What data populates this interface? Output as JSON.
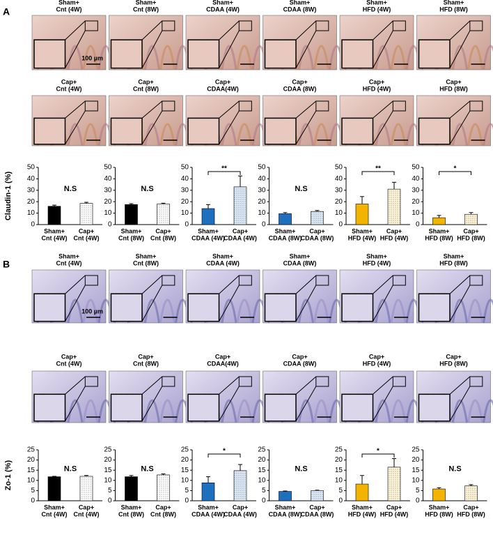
{
  "figure": {
    "panels": [
      {
        "label": "A",
        "scale_label": "100 µm",
        "micrograph_labels": [
          [
            [
              "Sham+",
              "Cnt (4W)"
            ],
            [
              "Sham+",
              "Cnt (8W)"
            ],
            [
              "Sham+",
              "CDAA (4W)"
            ],
            [
              "Sham+",
              "CDAA (8W)"
            ],
            [
              "Sham+",
              "HFD (4W)"
            ],
            [
              "Sham+",
              "HFD (8W)"
            ]
          ],
          [
            [
              "Cap+",
              "Cnt (4W)"
            ],
            [
              "Cap+",
              "Cnt (8W)"
            ],
            [
              "Cap+",
              "CDAA(4W)"
            ],
            [
              "Cap+",
              "CDAA (8W)"
            ],
            [
              "Cap+",
              "HFD (4W)"
            ],
            [
              "Cap+",
              "HFD (8W)"
            ]
          ]
        ]
      },
      {
        "label": "B",
        "scale_label": "100 µm",
        "micrograph_labels": [
          [
            [
              "Sham+",
              "Cnt (4W)"
            ],
            [
              "Sham+",
              "Cnt (8W)"
            ],
            [
              "Sham+",
              "CDAA (4W)"
            ],
            [
              "Sham+",
              "CDAA (8W)"
            ],
            [
              "Sham+",
              "HFD (4W)"
            ],
            [
              "Sham+",
              "HFD (8W)"
            ]
          ],
          [
            [
              "Cap+",
              "Cnt (4W)"
            ],
            [
              "Cap+",
              "Cnt (8W)"
            ],
            [
              "Cap+",
              "CDAA(4W)"
            ],
            [
              "Cap+",
              "CDAA (8W)"
            ],
            [
              "Cap+",
              "HFD (4W)"
            ],
            [
              "Cap+",
              "HFD (8W)"
            ]
          ]
        ]
      }
    ]
  },
  "chart_data": [
    {
      "type": "bar",
      "ylabel": "Claudin-1 (%)",
      "categories": [
        [
          "Sham+",
          "Cnt (4W)"
        ],
        [
          "Cap+",
          "Cnt (4W)"
        ]
      ],
      "values": [
        16,
        18.5
      ],
      "errors": [
        1,
        1
      ],
      "colors": [
        "#000000",
        "#ffffff"
      ],
      "bar_fill": [
        "solid",
        "dotted"
      ],
      "ylim": [
        0,
        50
      ],
      "yticks": [
        0,
        10,
        20,
        30,
        40,
        50
      ],
      "annotation": "N.S",
      "bracket": false
    },
    {
      "type": "bar",
      "categories": [
        [
          "Sham+",
          "Cnt (8W)"
        ],
        [
          "Cap+",
          "Cnt (8W)"
        ]
      ],
      "values": [
        17.5,
        18
      ],
      "errors": [
        0.8,
        0.7
      ],
      "colors": [
        "#000000",
        "#ffffff"
      ],
      "bar_fill": [
        "solid",
        "dotted"
      ],
      "ylim": [
        0,
        50
      ],
      "yticks": [
        0,
        10,
        20,
        30,
        40,
        50
      ],
      "annotation": "N.S",
      "bracket": false
    },
    {
      "type": "bar",
      "categories": [
        [
          "Sham+",
          "CDAA (4W)"
        ],
        [
          "Cap+",
          "CDAA (4W)"
        ]
      ],
      "values": [
        14,
        33
      ],
      "errors": [
        3.5,
        9.5
      ],
      "colors": [
        "#1f6fbf",
        "#dce9f7"
      ],
      "bar_fill": [
        "solid",
        "dotted"
      ],
      "ylim": [
        0,
        50
      ],
      "yticks": [
        0,
        10,
        20,
        30,
        40,
        50
      ],
      "annotation": "**",
      "bracket": true
    },
    {
      "type": "bar",
      "categories": [
        [
          "Sham+",
          "CDAA (8W)"
        ],
        [
          "Cap+",
          "CDAA (8W)"
        ]
      ],
      "values": [
        9.5,
        11.5
      ],
      "errors": [
        1,
        0.8
      ],
      "colors": [
        "#1f6fbf",
        "#dce9f7"
      ],
      "bar_fill": [
        "solid",
        "dotted"
      ],
      "ylim": [
        0,
        50
      ],
      "yticks": [
        0,
        10,
        20,
        30,
        40,
        50
      ],
      "annotation": "N.S",
      "bracket": false
    },
    {
      "type": "bar",
      "categories": [
        [
          "Sham+",
          "HFD (4W)"
        ],
        [
          "Cap+",
          "HFD (4W)"
        ]
      ],
      "values": [
        18,
        31
      ],
      "errors": [
        6.5,
        6
      ],
      "colors": [
        "#f2b400",
        "#fff5d6"
      ],
      "bar_fill": [
        "solid",
        "dotted"
      ],
      "ylim": [
        0,
        50
      ],
      "yticks": [
        0,
        10,
        20,
        30,
        40,
        50
      ],
      "annotation": "**",
      "bracket": true
    },
    {
      "type": "bar",
      "categories": [
        [
          "Sham+",
          "HFD (8W)"
        ],
        [
          "Cap+",
          "HFD (8W)"
        ]
      ],
      "values": [
        6,
        9
      ],
      "errors": [
        2,
        1.5
      ],
      "colors": [
        "#f2b400",
        "#fff5d6"
      ],
      "bar_fill": [
        "solid",
        "dotted"
      ],
      "ylim": [
        0,
        50
      ],
      "yticks": [
        0,
        10,
        20,
        30,
        40,
        50
      ],
      "annotation": "*",
      "bracket": true
    },
    {
      "type": "bar",
      "ylabel": "Zo-1 (%)",
      "categories": [
        [
          "Sham+",
          "Cnt (4W)"
        ],
        [
          "Cap+",
          "Cnt (4W)"
        ]
      ],
      "values": [
        11.8,
        12
      ],
      "errors": [
        0.2,
        0.4
      ],
      "colors": [
        "#000000",
        "#ffffff"
      ],
      "bar_fill": [
        "solid",
        "dotted"
      ],
      "ylim": [
        0,
        25
      ],
      "yticks": [
        0,
        5,
        10,
        15,
        20,
        25
      ],
      "annotation": "N.S",
      "bracket": false
    },
    {
      "type": "bar",
      "categories": [
        [
          "Sham+",
          "Cnt (8W)"
        ],
        [
          "Cap+",
          "Cnt (8W)"
        ]
      ],
      "values": [
        11.8,
        12.7
      ],
      "errors": [
        0.6,
        0.5
      ],
      "colors": [
        "#000000",
        "#ffffff"
      ],
      "bar_fill": [
        "solid",
        "dotted"
      ],
      "ylim": [
        0,
        25
      ],
      "yticks": [
        0,
        5,
        10,
        15,
        20,
        25
      ],
      "annotation": "N.S",
      "bracket": false
    },
    {
      "type": "bar",
      "categories": [
        [
          "Sham+",
          "CDAA (4W)"
        ],
        [
          "Cap+",
          "CDAA (4W)"
        ]
      ],
      "values": [
        8.8,
        14.8
      ],
      "errors": [
        3,
        3
      ],
      "colors": [
        "#1f6fbf",
        "#dce9f7"
      ],
      "bar_fill": [
        "solid",
        "dotted"
      ],
      "ylim": [
        0,
        25
      ],
      "yticks": [
        0,
        5,
        10,
        15,
        20,
        25
      ],
      "annotation": "*",
      "bracket": true
    },
    {
      "type": "bar",
      "categories": [
        [
          "Sham+",
          "CDAA (8W)"
        ],
        [
          "Cap+",
          "CDAA (8W)"
        ]
      ],
      "values": [
        4.6,
        5
      ],
      "errors": [
        0.2,
        0.2
      ],
      "colors": [
        "#1f6fbf",
        "#dce9f7"
      ],
      "bar_fill": [
        "solid",
        "dotted"
      ],
      "ylim": [
        0,
        25
      ],
      "yticks": [
        0,
        5,
        10,
        15,
        20,
        25
      ],
      "annotation": "N.S",
      "bracket": false
    },
    {
      "type": "bar",
      "categories": [
        [
          "Sham+",
          "HFD (4W)"
        ],
        [
          "Cap+",
          "HFD (4W)"
        ]
      ],
      "values": [
        8.2,
        16.5
      ],
      "errors": [
        4.2,
        4.2
      ],
      "colors": [
        "#f2b400",
        "#fff5d6"
      ],
      "bar_fill": [
        "solid",
        "dotted"
      ],
      "ylim": [
        0,
        25
      ],
      "yticks": [
        0,
        5,
        10,
        15,
        20,
        25
      ],
      "annotation": "*",
      "bracket": true
    },
    {
      "type": "bar",
      "categories": [
        [
          "Sham+",
          "HFD (8W)"
        ],
        [
          "Cap+",
          "HFD (8W)"
        ]
      ],
      "values": [
        5.8,
        7.3
      ],
      "errors": [
        0.6,
        0.6
      ],
      "colors": [
        "#f2b400",
        "#fff5d6"
      ],
      "bar_fill": [
        "solid",
        "dotted"
      ],
      "ylim": [
        0,
        25
      ],
      "yticks": [
        0,
        5,
        10,
        15,
        20,
        25
      ],
      "annotation": "N.S",
      "bracket": false
    }
  ]
}
